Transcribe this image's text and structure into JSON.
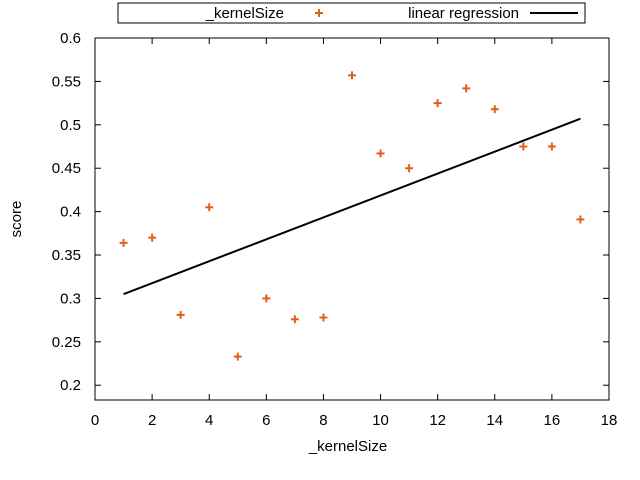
{
  "chart_data": {
    "type": "scatter",
    "xlabel": "_kernelSize",
    "ylabel": "score",
    "xlim": [
      0,
      18
    ],
    "ylim": [
      0.183,
      0.6
    ],
    "x_ticks": [
      0,
      2,
      4,
      6,
      8,
      10,
      12,
      14,
      16,
      18
    ],
    "y_ticks": [
      0.2,
      0.25,
      0.3,
      0.35,
      0.4,
      0.45,
      0.5,
      0.55,
      0.6
    ],
    "legend_position": "top",
    "grid": false,
    "series": [
      {
        "name": "_kernelSize",
        "kind": "points",
        "marker": "plus",
        "color": "#e0601a",
        "x": [
          1,
          2,
          3,
          4,
          5,
          6,
          7,
          8,
          9,
          10,
          11,
          12,
          13,
          14,
          15,
          16,
          17
        ],
        "y": [
          0.364,
          0.37,
          0.281,
          0.405,
          0.233,
          0.3,
          0.276,
          0.278,
          0.557,
          0.467,
          0.45,
          0.525,
          0.542,
          0.518,
          0.475,
          0.475,
          0.391
        ]
      },
      {
        "name": "linear regression",
        "kind": "line",
        "color": "#000000",
        "x": [
          1,
          17
        ],
        "y": [
          0.305,
          0.507
        ]
      }
    ]
  }
}
